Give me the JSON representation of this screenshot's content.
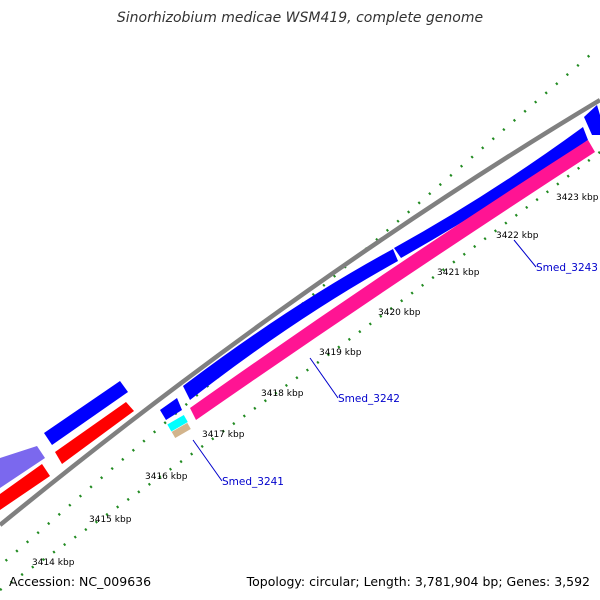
{
  "title": "Sinorhizobium medicae WSM419, complete genome",
  "footer": {
    "accession": "Accession: NC_009636",
    "summary": "Topology: circular; Length: 3,781,904 bp; Genes: 3,592"
  },
  "colors": {
    "backbone": "#808080",
    "forward_gene": "#0000ff",
    "forward_gene_alt": "#7b68ee",
    "reverse_gene": "#ff0000",
    "reverse_gene_alt": "#ff1493",
    "rna_gene": "#00ffff",
    "other_gene": "#d2b48c",
    "tick": "#228b22",
    "gene_label": "#0000cc"
  },
  "ticks": [
    "3414 kbp",
    "3415 kbp",
    "3416 kbp",
    "3417 kbp",
    "3418 kbp",
    "3419 kbp",
    "3420 kbp",
    "3421 kbp",
    "3422 kbp",
    "3423 kbp"
  ],
  "gene_labels": [
    "Smed_3241",
    "Smed_3242",
    "Smed_3243"
  ]
}
